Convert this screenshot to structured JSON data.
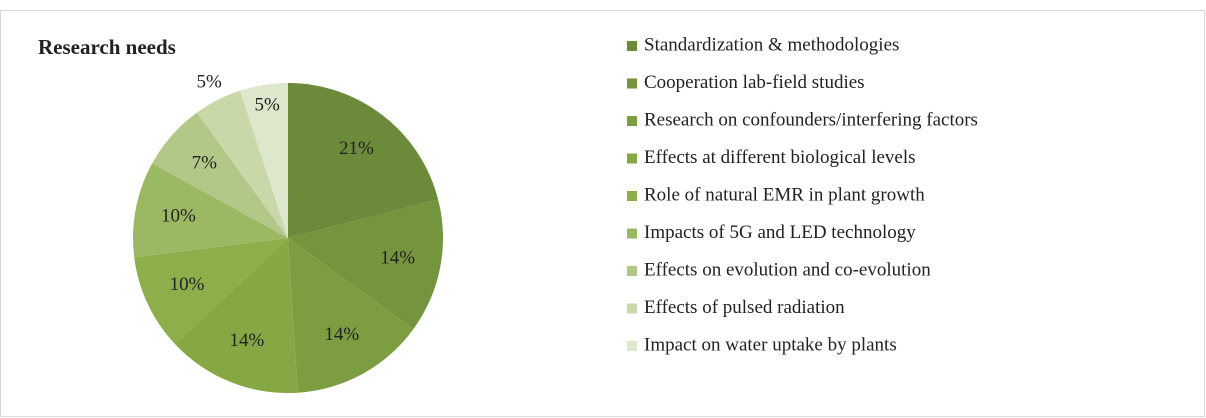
{
  "chart_data": {
    "type": "pie",
    "title": "Research needs",
    "categories": [
      "Standardization & methodologies",
      "Cooperation lab-field studies",
      "Research on confounders/interfering factors",
      "Effects at different biological levels",
      "Role of natural EMR in plant growth",
      "Impacts of 5G and LED technology",
      "Effects on evolution and co-evolution",
      "Effects of pulsed radiation",
      "Impact on water uptake by plants"
    ],
    "values": [
      21,
      14,
      14,
      14,
      10,
      10,
      7,
      5,
      5
    ],
    "value_labels": [
      "21%",
      "14%",
      "14%",
      "14%",
      "10%",
      "10%",
      "7%",
      "5%",
      "5%"
    ],
    "colors": [
      "#6b8a3a",
      "#74943d",
      "#7c9d40",
      "#85a744",
      "#8daf4b",
      "#9bb862",
      "#b2c888",
      "#c8d8a9",
      "#dde7cb"
    ],
    "legend": "right"
  }
}
